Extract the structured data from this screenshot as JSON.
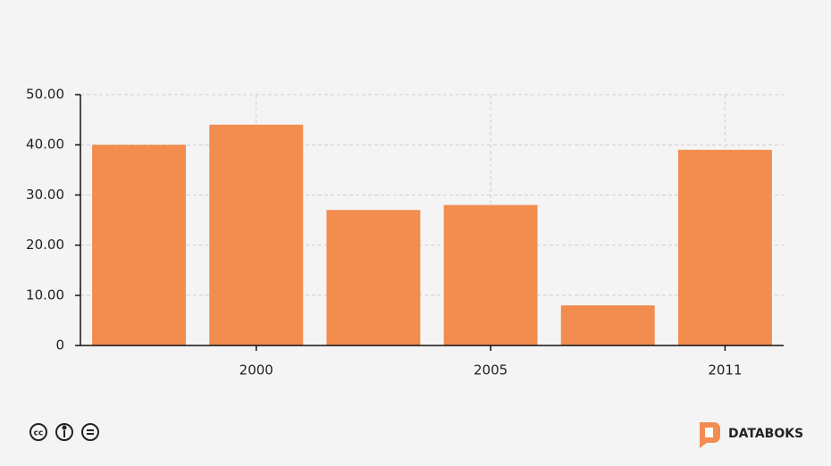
{
  "chart_data": {
    "type": "bar",
    "categories": [
      null,
      "2000",
      null,
      "2005",
      null,
      "2011"
    ],
    "values": [
      40,
      44,
      27,
      28,
      8,
      39
    ],
    "color": "#f28c4f",
    "ylim": [
      0,
      50
    ],
    "yticks": [
      0,
      {
        "value": 10,
        "label": "10.00"
      },
      {
        "value": 20,
        "label": "20.00"
      },
      {
        "value": 30,
        "label": "30.00"
      },
      {
        "value": 40,
        "label": "40.00"
      },
      {
        "value": 50,
        "label": "50.00"
      }
    ],
    "grid": true
  },
  "footer": {
    "brand": "DATABOKS"
  }
}
